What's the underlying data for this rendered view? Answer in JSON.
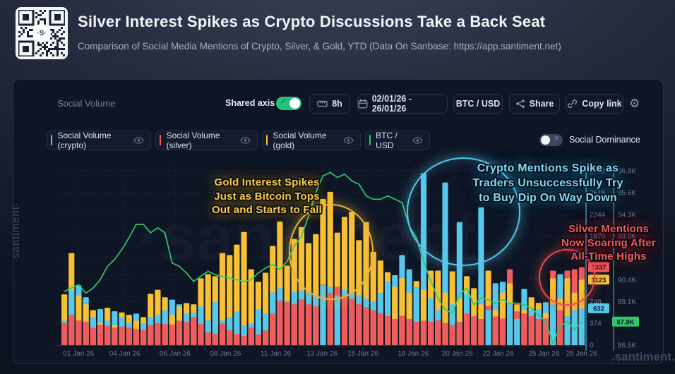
{
  "header": {
    "title": "Silver Interest Spikes as Crypto Discussions Take a Back Seat",
    "subtitle": "Comparison of Social Media Mentions of Crypto, Silver, & Gold, YTD (Data On Sanbase: https://app.santiment.net)"
  },
  "toolbar": {
    "metric_label": "Social Volume",
    "shared_axis_label": "Shared axis",
    "interval_label": "8h",
    "date_range": "02/01/26 - 26/01/26",
    "pair_label": "BTC / USD",
    "share_label": "Share",
    "copy_link_label": "Copy link"
  },
  "legend": {
    "items": [
      {
        "label": "Social Volume (crypto)",
        "color": "#56c8ec"
      },
      {
        "label": "Social Volume (silver)",
        "color": "#f25b5b"
      },
      {
        "label": "Social Volume (gold)",
        "color": "#f8c035"
      },
      {
        "label": "BTC / USD",
        "color": "#2fc96a"
      }
    ],
    "social_dominance_label": "Social Dominance"
  },
  "annotations": {
    "gold": {
      "lines": [
        "Gold Interest Spikes",
        "Just as Bitcoin Tops",
        "Out and Starts to Fall"
      ]
    },
    "crypto": {
      "lines": [
        "Crypto Mentions Spike as",
        "Traders Unsuccessfully Try",
        "to Buy Dip On Way Down"
      ]
    },
    "silver": {
      "lines": [
        "Silver Mentions",
        "Now Soaring After",
        "All-Time Highs"
      ]
    }
  },
  "watermarks": {
    "left": "·santiment·",
    "bottom_right": ".santiment.",
    "center": "·santiment"
  },
  "chart_data": {
    "type": "bar",
    "note": "overlaid (not stacked) bars, 8h resolution, with BTC/USD line on secondary axis",
    "x_ticks": [
      {
        "label": "01 Jan 26",
        "f": 0.034
      },
      {
        "label": "04 Jan 26",
        "f": 0.122
      },
      {
        "label": "06 Jan 26",
        "f": 0.218
      },
      {
        "label": "08 Jan 26",
        "f": 0.314
      },
      {
        "label": "11 Jan 26",
        "f": 0.41
      },
      {
        "label": "13 Jan 26",
        "f": 0.498
      },
      {
        "label": "15 Jan 26",
        "f": 0.576
      },
      {
        "label": "18 Jan 26",
        "f": 0.672
      },
      {
        "label": "20 Jan 26",
        "f": 0.756
      },
      {
        "label": "22 Jan 26",
        "f": 0.834
      },
      {
        "label": "25 Jan 26",
        "f": 0.921
      },
      {
        "label": "26 Jan 26",
        "f": 0.993
      }
    ],
    "left_axis": {
      "color": "#56c8ec",
      "max": 2992,
      "ticks": [
        0,
        374,
        748,
        1122,
        1496,
        1870,
        2244,
        2618,
        2992
      ]
    },
    "right_axis": {
      "color": "#2fc96a",
      "min": 86.5,
      "max": 96.9,
      "ticks": [
        {
          "label": "86.5K",
          "v": 86.5
        },
        {
          "label": "87.8K",
          "v": 87.8
        },
        {
          "label": "89.1K",
          "v": 89.1
        },
        {
          "label": "90.4K",
          "v": 90.4
        },
        {
          "label": "91.7K",
          "v": 91.7
        },
        {
          "label": "93.0K",
          "v": 93.0
        },
        {
          "label": "94.3K",
          "v": 94.3
        },
        {
          "label": "95.6K",
          "v": 95.6
        },
        {
          "label": "96.9K",
          "v": 96.9
        }
      ]
    },
    "series": [
      {
        "name": "Social Volume (silver)",
        "color": "#f25b5b",
        "values": [
          380,
          518,
          422,
          400,
          300,
          350,
          330,
          300,
          320,
          300,
          280,
          260,
          350,
          380,
          360,
          350,
          420,
          400,
          482,
          362,
          217,
          193,
          374,
          253,
          193,
          157,
          301,
          181,
          253,
          543,
          760,
          736,
          700,
          784,
          700,
          663,
          1037,
          900,
          1001,
          850,
          800,
          700,
          650,
          600,
          550,
          500,
          450,
          500,
          450,
          400,
          420,
          400,
          422,
          380,
          350,
          400,
          543,
          494,
          450,
          675,
          494,
          458,
          1302,
          579,
          543,
          500,
          450,
          458,
          1278,
          600,
          1278,
          1302,
          1337
        ]
      },
      {
        "name": "Social Volume (gold)",
        "color": "#f8c035",
        "values": [
          870,
          1580,
          856,
          700,
          600,
          380,
          640,
          340,
          560,
          520,
          420,
          480,
          880,
          950,
          820,
          520,
          660,
          720,
          700,
          1146,
          1218,
          1182,
          1580,
          1544,
          1724,
          1941,
          1302,
          1085,
          1242,
          1700,
          2122,
          1363,
          1821,
          2026,
          1749,
          1905,
          2508,
          2630,
          1930,
          2200,
          2290,
          1800,
          2110,
          1600,
          1450,
          1250,
          1000,
          1150,
          900,
          1100,
          950,
          1278,
          1278,
          900,
          1266,
          800,
          1182,
          977,
          700,
          1278,
          600,
          904,
          1061,
          700,
          600,
          820,
          724,
          550,
          1146,
          800,
          1146,
          900,
          1123
        ]
      },
      {
        "name": "Social Volume (crypto)",
        "color": "#56c8ec",
        "values": [
          420,
          940,
          1025,
          820,
          480,
          620,
          420,
          580,
          480,
          380,
          540,
          380,
          480,
          520,
          600,
          780,
          700,
          540,
          555,
          663,
          422,
          736,
          422,
          482,
          579,
          338,
          374,
          615,
          543,
          904,
          977,
          760,
          917,
          941,
          904,
          856,
          1025,
          1000,
          844,
          950,
          900,
          850,
          800,
          750,
          900,
          1100,
          1200,
          1544,
          1300,
          1000,
          2950,
          800,
          600,
          2790,
          700,
          2110,
          880,
          500,
          2365,
          600,
          1061,
          1085,
          700,
          450,
          965,
          600,
          615,
          736,
          700,
          1218,
          500,
          600,
          632
        ]
      }
    ],
    "line": {
      "name": "BTC / USD",
      "color": "#2fc96a",
      "unit": "K",
      "values": [
        89.7,
        89.9,
        90.1,
        89.6,
        89.9,
        90.4,
        91.2,
        91.6,
        92.2,
        92.9,
        93.7,
        93.7,
        93.2,
        93.5,
        93.2,
        91.4,
        91.2,
        90.8,
        90.3,
        90.6,
        90.9,
        90.7,
        90.6,
        90.5,
        90.4,
        90.3,
        90.4,
        90.8,
        91.1,
        91.3,
        91.0,
        91.5,
        92.4,
        93.0,
        94.2,
        95.6,
        96.6,
        96.8,
        96.5,
        96.7,
        96.3,
        96.1,
        95.4,
        95.2,
        95.2,
        95.4,
        95.2,
        95.0,
        93.6,
        92.9,
        91.5,
        90.3,
        89.3,
        88.6,
        88.4,
        89.5,
        89.9,
        88.9,
        89.3,
        89.2,
        89.0,
        89.2,
        89.0,
        89.0,
        88.9,
        88.7,
        88.3,
        87.9,
        86.6,
        87.6,
        87.9,
        87.4,
        87.9
      ]
    },
    "last_value_badges": [
      {
        "label": "1337",
        "color": "#f25b5b",
        "value": 1337,
        "axis": "left"
      },
      {
        "label": "1123",
        "color": "#f8c035",
        "value": 1123,
        "axis": "left"
      },
      {
        "label": "632",
        "color": "#56c8ec",
        "value": 632,
        "axis": "left"
      },
      {
        "label": "87.9K",
        "color": "#2fc96a",
        "value": 87.9,
        "axis": "right"
      }
    ]
  }
}
